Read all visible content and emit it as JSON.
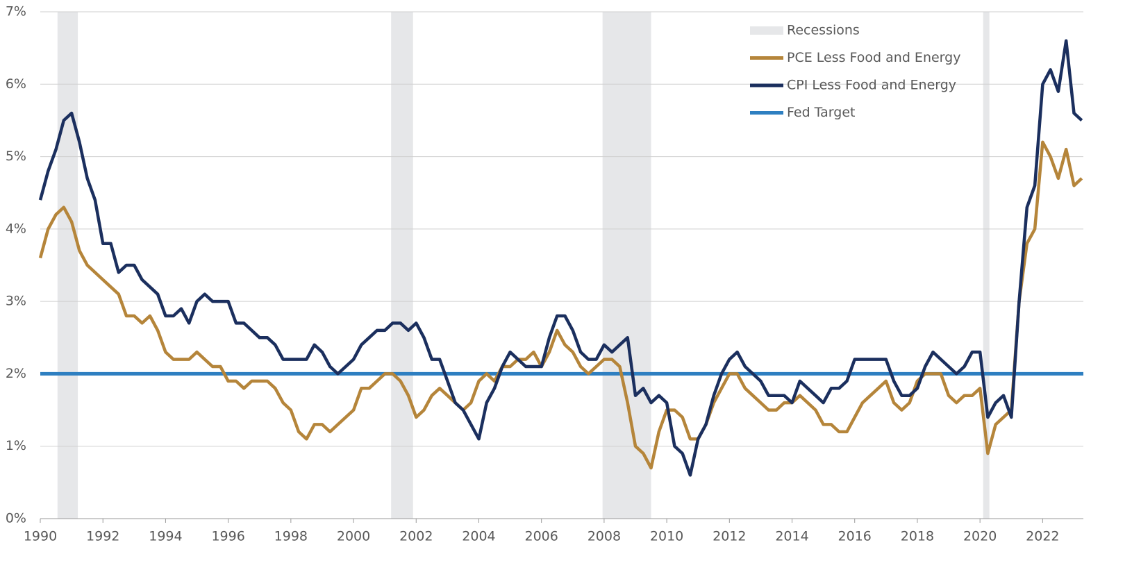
{
  "chart_data": {
    "type": "line",
    "x": [
      1990,
      1990.25,
      1990.5,
      1990.75,
      1991,
      1991.25,
      1991.5,
      1991.75,
      1992,
      1992.25,
      1992.5,
      1992.75,
      1993,
      1993.25,
      1993.5,
      1993.75,
      1994,
      1994.25,
      1994.5,
      1994.75,
      1995,
      1995.25,
      1995.5,
      1995.75,
      1996,
      1996.25,
      1996.5,
      1996.75,
      1997,
      1997.25,
      1997.5,
      1997.75,
      1998,
      1998.25,
      1998.5,
      1998.75,
      1999,
      1999.25,
      1999.5,
      1999.75,
      2000,
      2000.25,
      2000.5,
      2000.75,
      2001,
      2001.25,
      2001.5,
      2001.75,
      2002,
      2002.25,
      2002.5,
      2002.75,
      2003,
      2003.25,
      2003.5,
      2003.75,
      2004,
      2004.25,
      2004.5,
      2004.75,
      2005,
      2005.25,
      2005.5,
      2005.75,
      2006,
      2006.25,
      2006.5,
      2006.75,
      2007,
      2007.25,
      2007.5,
      2007.75,
      2008,
      2008.25,
      2008.5,
      2008.75,
      2009,
      2009.25,
      2009.5,
      2009.75,
      2010,
      2010.25,
      2010.5,
      2010.75,
      2011,
      2011.25,
      2011.5,
      2011.75,
      2012,
      2012.25,
      2012.5,
      2012.75,
      2013,
      2013.25,
      2013.5,
      2013.75,
      2014,
      2014.25,
      2014.5,
      2014.75,
      2015,
      2015.25,
      2015.5,
      2015.75,
      2016,
      2016.25,
      2016.5,
      2016.75,
      2017,
      2017.25,
      2017.5,
      2017.75,
      2018,
      2018.25,
      2018.5,
      2018.75,
      2019,
      2019.25,
      2019.5,
      2019.75,
      2020,
      2020.25,
      2020.5,
      2020.75,
      2021,
      2021.25,
      2021.5,
      2021.75,
      2022,
      2022.25,
      2022.5,
      2022.75,
      2023,
      2023.25
    ],
    "series": [
      {
        "name": "PCE Less Food and Energy",
        "color": "#b5853a",
        "values": [
          3.6,
          4.0,
          4.2,
          4.3,
          4.1,
          3.7,
          3.5,
          3.4,
          3.3,
          3.2,
          3.1,
          2.8,
          2.8,
          2.7,
          2.8,
          2.6,
          2.3,
          2.2,
          2.2,
          2.2,
          2.3,
          2.2,
          2.1,
          2.1,
          1.9,
          1.9,
          1.8,
          1.9,
          1.9,
          1.9,
          1.8,
          1.6,
          1.5,
          1.2,
          1.1,
          1.3,
          1.3,
          1.2,
          1.3,
          1.4,
          1.5,
          1.8,
          1.8,
          1.9,
          2.0,
          2.0,
          1.9,
          1.7,
          1.4,
          1.5,
          1.7,
          1.8,
          1.7,
          1.6,
          1.5,
          1.6,
          1.9,
          2.0,
          1.9,
          2.1,
          2.1,
          2.2,
          2.2,
          2.3,
          2.1,
          2.3,
          2.6,
          2.4,
          2.3,
          2.1,
          2.0,
          2.1,
          2.2,
          2.2,
          2.1,
          1.6,
          1.0,
          0.9,
          0.7,
          1.2,
          1.5,
          1.5,
          1.4,
          1.1,
          1.1,
          1.3,
          1.6,
          1.8,
          2.0,
          2.0,
          1.8,
          1.7,
          1.6,
          1.5,
          1.5,
          1.6,
          1.6,
          1.7,
          1.6,
          1.5,
          1.3,
          1.3,
          1.2,
          1.2,
          1.4,
          1.6,
          1.7,
          1.8,
          1.9,
          1.6,
          1.5,
          1.6,
          1.9,
          2.0,
          2.0,
          2.0,
          1.7,
          1.6,
          1.7,
          1.7,
          1.8,
          0.9,
          1.3,
          1.4,
          1.5,
          3.0,
          3.8,
          4.0,
          5.2,
          5.0,
          4.7,
          5.1,
          4.6,
          4.7
        ]
      },
      {
        "name": "CPI Less Food and Energy",
        "color": "#1b2f5e",
        "values": [
          4.4,
          4.8,
          5.1,
          5.5,
          5.6,
          5.2,
          4.7,
          4.4,
          3.8,
          3.8,
          3.4,
          3.5,
          3.5,
          3.3,
          3.2,
          3.1,
          2.8,
          2.8,
          2.9,
          2.7,
          3.0,
          3.1,
          3.0,
          3.0,
          3.0,
          2.7,
          2.7,
          2.6,
          2.5,
          2.5,
          2.4,
          2.2,
          2.2,
          2.2,
          2.2,
          2.4,
          2.3,
          2.1,
          2.0,
          2.1,
          2.2,
          2.4,
          2.5,
          2.6,
          2.6,
          2.7,
          2.7,
          2.6,
          2.7,
          2.5,
          2.2,
          2.2,
          1.9,
          1.6,
          1.5,
          1.3,
          1.1,
          1.6,
          1.8,
          2.1,
          2.3,
          2.2,
          2.1,
          2.1,
          2.1,
          2.5,
          2.8,
          2.8,
          2.6,
          2.3,
          2.2,
          2.2,
          2.4,
          2.3,
          2.4,
          2.5,
          1.7,
          1.8,
          1.6,
          1.7,
          1.6,
          1.0,
          0.9,
          0.6,
          1.1,
          1.3,
          1.7,
          2.0,
          2.2,
          2.3,
          2.1,
          2.0,
          1.9,
          1.7,
          1.7,
          1.7,
          1.6,
          1.9,
          1.8,
          1.7,
          1.6,
          1.8,
          1.8,
          1.9,
          2.2,
          2.2,
          2.2,
          2.2,
          2.2,
          1.9,
          1.7,
          1.7,
          1.8,
          2.1,
          2.3,
          2.2,
          2.1,
          2.0,
          2.1,
          2.3,
          2.3,
          1.4,
          1.6,
          1.7,
          1.4,
          3.0,
          4.3,
          4.6,
          6.0,
          6.2,
          5.9,
          6.6,
          5.6,
          5.5
        ]
      }
    ],
    "reference_line": {
      "name": "Fed Target",
      "value": 2,
      "color": "#2e7fc1"
    },
    "recessions": {
      "name": "Recessions",
      "color": "#e6e7e9",
      "periods": [
        [
          1990.55,
          1991.2
        ],
        [
          2001.2,
          2001.9
        ],
        [
          2007.95,
          2009.5
        ],
        [
          2020.1,
          2020.3
        ]
      ]
    },
    "xlim": [
      1990,
      2023.3
    ],
    "xticks": [
      1990,
      1992,
      1994,
      1996,
      1998,
      2000,
      2002,
      2004,
      2006,
      2008,
      2010,
      2012,
      2014,
      2016,
      2018,
      2020,
      2022
    ],
    "ylim": [
      0,
      7
    ],
    "yticks": [
      {
        "value": 0,
        "label": "0%"
      },
      {
        "value": 1,
        "label": "1%"
      },
      {
        "value": 2,
        "label": "2%"
      },
      {
        "value": 3,
        "label": "3%"
      },
      {
        "value": 4,
        "label": "4%"
      },
      {
        "value": 5,
        "label": "5%"
      },
      {
        "value": 6,
        "label": "6%"
      },
      {
        "value": 7,
        "label": "7%"
      }
    ],
    "grid": true,
    "legend": "top-right"
  }
}
